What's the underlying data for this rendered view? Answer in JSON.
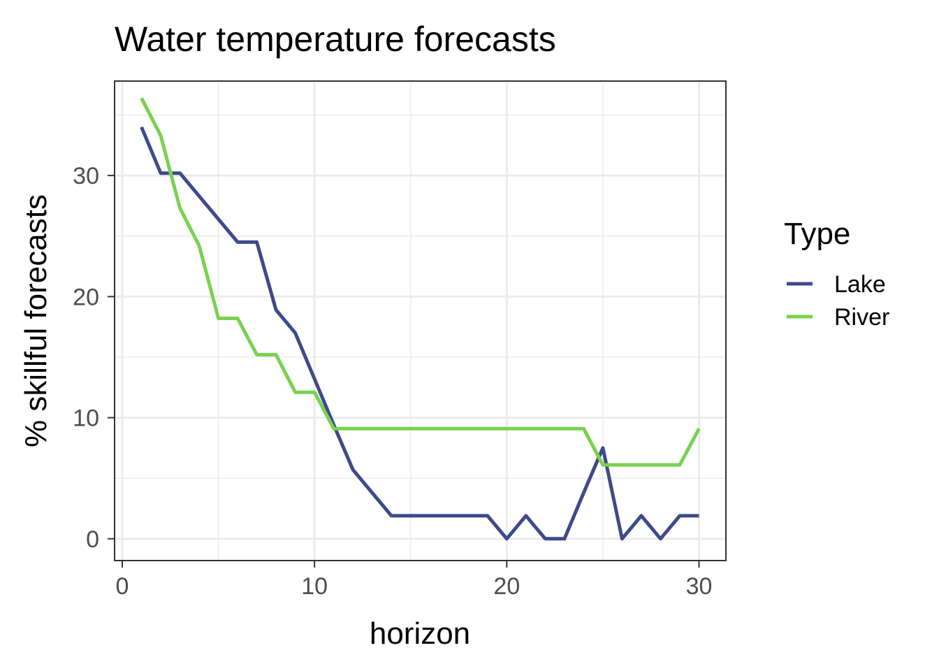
{
  "chart_data": {
    "type": "line",
    "title": "Water temperature forecasts",
    "xlabel": "horizon",
    "ylabel": "% skillful forecasts",
    "xlim": [
      -0.4,
      31.4
    ],
    "ylim": [
      -1.8,
      37.8
    ],
    "x_ticks": [
      0,
      10,
      20,
      30
    ],
    "y_ticks": [
      0,
      10,
      20,
      30
    ],
    "grid": true,
    "legend": {
      "title": "Type",
      "position": "right"
    },
    "x": [
      1,
      2,
      3,
      4,
      5,
      6,
      7,
      8,
      9,
      10,
      11,
      12,
      13,
      14,
      15,
      16,
      17,
      18,
      19,
      20,
      21,
      22,
      23,
      24,
      25,
      26,
      27,
      28,
      29,
      30
    ],
    "series": [
      {
        "name": "Lake",
        "color": "#3e4a89",
        "values": [
          34.0,
          30.2,
          30.2,
          28.3,
          26.4,
          24.5,
          24.5,
          18.9,
          17.0,
          13.2,
          9.4,
          5.7,
          3.8,
          1.9,
          1.9,
          1.9,
          1.9,
          1.9,
          1.9,
          0.0,
          1.9,
          0.0,
          0.0,
          3.8,
          7.5,
          0.0,
          1.9,
          0.0,
          1.9,
          1.9
        ]
      },
      {
        "name": "River",
        "color": "#7ad151",
        "values": [
          36.4,
          33.3,
          27.3,
          24.2,
          18.2,
          18.2,
          15.2,
          15.2,
          12.1,
          12.1,
          9.1,
          9.1,
          9.1,
          9.1,
          9.1,
          9.1,
          9.1,
          9.1,
          9.1,
          9.1,
          9.1,
          9.1,
          9.1,
          9.1,
          6.1,
          6.1,
          6.1,
          6.1,
          6.1,
          9.1
        ]
      }
    ]
  }
}
